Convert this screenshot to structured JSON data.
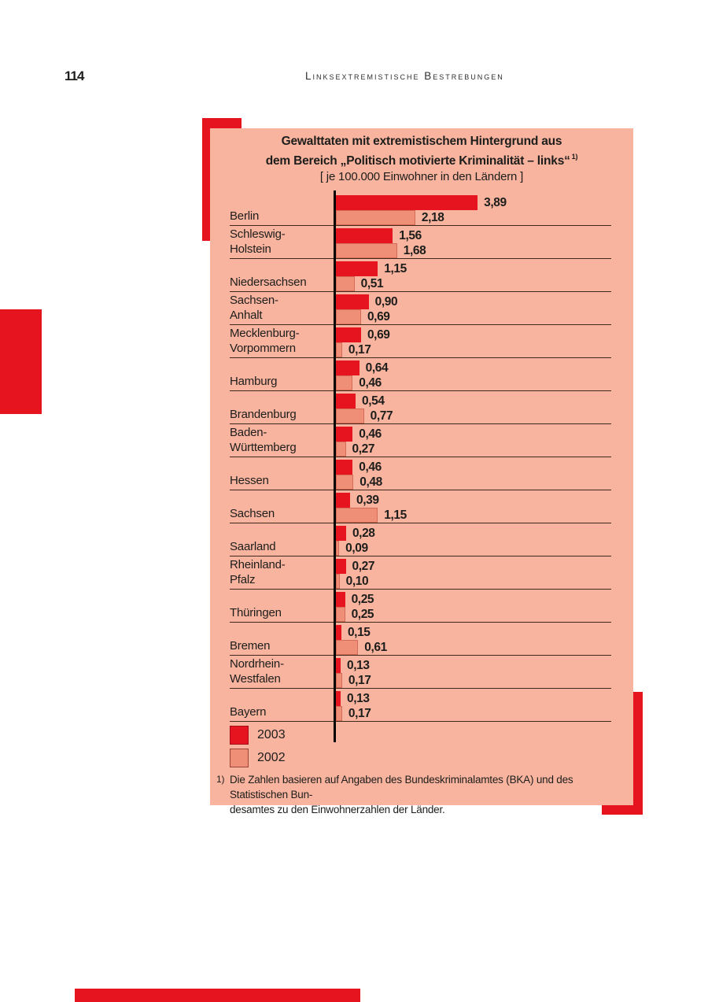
{
  "page": {
    "number": "114",
    "header": "Linksextremistische Bestrebungen"
  },
  "chart_data": {
    "type": "bar",
    "orientation": "horizontal",
    "title": "Gewalttaten mit extremistischem Hintergrund aus dem Bereich „Politisch motivierte Kriminalität – links“",
    "title_lines": [
      "Gewalttaten mit extremistischem Hintergrund aus",
      "dem Bereich „Politisch motivierte Kriminalität – links“"
    ],
    "title_footnote_marker": "1)",
    "subtitle": "[ je 100.000 Einwohner in den Ländern ]",
    "xlim": [
      0,
      4
    ],
    "grid": false,
    "legend_position": "bottom-left",
    "categories": [
      "Berlin",
      "Schleswig-Holstein",
      "Niedersachsen",
      "Sachsen-Anhalt",
      "Mecklenburg-Vorpommern",
      "Hamburg",
      "Brandenburg",
      "Baden-Württemberg",
      "Hessen",
      "Sachsen",
      "Saarland",
      "Rheinland-Pfalz",
      "Thüringen",
      "Bremen",
      "Nordrhein-Westfalen",
      "Bayern"
    ],
    "series": [
      {
        "name": "2003",
        "color": "#e6141e",
        "values": [
          3.89,
          1.56,
          1.15,
          0.9,
          0.69,
          0.64,
          0.54,
          0.46,
          0.46,
          0.39,
          0.28,
          0.27,
          0.25,
          0.15,
          0.13,
          0.13
        ]
      },
      {
        "name": "2002",
        "color": "#f08f78",
        "values": [
          2.18,
          1.68,
          0.51,
          0.69,
          0.17,
          0.46,
          0.77,
          0.27,
          0.48,
          1.15,
          0.09,
          0.1,
          0.25,
          0.61,
          0.17,
          0.17
        ]
      }
    ],
    "rows": [
      {
        "label_lines": [
          "Berlin"
        ],
        "v2003": "3,89",
        "v2002": "2,18"
      },
      {
        "label_lines": [
          "Schleswig-",
          "Holstein"
        ],
        "v2003": "1,56",
        "v2002": "1,68"
      },
      {
        "label_lines": [
          "Niedersachsen"
        ],
        "v2003": "1,15",
        "v2002": "0,51"
      },
      {
        "label_lines": [
          "Sachsen-",
          "Anhalt"
        ],
        "v2003": "0,90",
        "v2002": "0,69"
      },
      {
        "label_lines": [
          "Mecklenburg-",
          "Vorpommern"
        ],
        "v2003": "0,69",
        "v2002": "0,17"
      },
      {
        "label_lines": [
          "Hamburg"
        ],
        "v2003": "0,64",
        "v2002": "0,46"
      },
      {
        "label_lines": [
          "Brandenburg"
        ],
        "v2003": "0,54",
        "v2002": "0,77"
      },
      {
        "label_lines": [
          "Baden-",
          "Württemberg"
        ],
        "v2003": "0,46",
        "v2002": "0,27"
      },
      {
        "label_lines": [
          "Hessen"
        ],
        "v2003": "0,46",
        "v2002": "0,48"
      },
      {
        "label_lines": [
          "Sachsen"
        ],
        "v2003": "0,39",
        "v2002": "1,15"
      },
      {
        "label_lines": [
          "Saarland"
        ],
        "v2003": "0,28",
        "v2002": "0,09"
      },
      {
        "label_lines": [
          "Rheinland-",
          "Pfalz"
        ],
        "v2003": "0,27",
        "v2002": "0,10"
      },
      {
        "label_lines": [
          "Thüringen"
        ],
        "v2003": "0,25",
        "v2002": "0,25"
      },
      {
        "label_lines": [
          "Bremen"
        ],
        "v2003": "0,15",
        "v2002": "0,61"
      },
      {
        "label_lines": [
          "Nordrhein-",
          "Westfalen"
        ],
        "v2003": "0,13",
        "v2002": "0,17"
      },
      {
        "label_lines": [
          "Bayern"
        ],
        "v2003": "0,13",
        "v2002": "0,17"
      }
    ],
    "legend": [
      {
        "label": "2003",
        "color": "#e6141e"
      },
      {
        "label": "2002",
        "color": "#f08f78"
      }
    ]
  },
  "footnote": {
    "marker": "1)",
    "lines": [
      "Die Zahlen basieren auf Angaben des Bundeskriminalamtes (BKA) und des Statistischen Bun-",
      "desamtes zu den Einwohnerzahlen der Länder."
    ],
    "text": "Die Zahlen basieren auf Angaben des Bundeskriminalamtes (BKA) und des Statistischen Bundesamtes zu den Einwohnerzahlen der Länder."
  },
  "colors": {
    "accent_red": "#e6141e",
    "bar_2003": "#e6141e",
    "bar_2002": "#f08f78",
    "panel_background": "#f8b49f",
    "text": "#1d1d1b",
    "separator": "#40291c",
    "axis": "#000000",
    "page_background": "#ffffff"
  }
}
